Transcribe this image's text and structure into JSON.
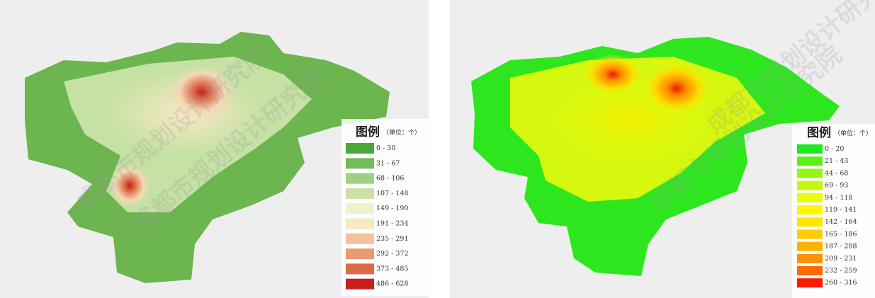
{
  "watermark": "成都市规划设计研究院",
  "panels": [
    {
      "legend": {
        "title": "图例",
        "unit": "（单位：个）",
        "items": [
          {
            "label": "0 - 30",
            "color": "#4da83a"
          },
          {
            "label": "31 - 67",
            "color": "#74bb5a"
          },
          {
            "label": "68 - 106",
            "color": "#9fcf82"
          },
          {
            "label": "107 - 148",
            "color": "#c8e2a8"
          },
          {
            "label": "149 - 190",
            "color": "#eef3cf"
          },
          {
            "label": "191 - 234",
            "color": "#f8e8c4"
          },
          {
            "label": "235 - 291",
            "color": "#f2c39a"
          },
          {
            "label": "292 - 372",
            "color": "#ea9a72"
          },
          {
            "label": "373 - 485",
            "color": "#dc6a48"
          },
          {
            "label": "486 - 628",
            "color": "#c81e1e"
          }
        ]
      }
    },
    {
      "legend": {
        "title": "图例",
        "unit": "（单位：个）",
        "items": [
          {
            "label": "0 - 20",
            "color": "#1fe81f"
          },
          {
            "label": "21 - 43",
            "color": "#5cf018"
          },
          {
            "label": "44 - 68",
            "color": "#95f512"
          },
          {
            "label": "69 - 93",
            "color": "#c6f80e"
          },
          {
            "label": "94 - 118",
            "color": "#e9fa0a"
          },
          {
            "label": "119 - 141",
            "color": "#fcf606"
          },
          {
            "label": "142 - 164",
            "color": "#ffe404"
          },
          {
            "label": "165 - 186",
            "color": "#ffcd02"
          },
          {
            "label": "187 - 208",
            "color": "#ffb300"
          },
          {
            "label": "209 - 231",
            "color": "#ff9200"
          },
          {
            "label": "232 - 259",
            "color": "#ff6a00"
          },
          {
            "label": "260 - 316",
            "color": "#ff1a00"
          }
        ]
      }
    }
  ]
}
